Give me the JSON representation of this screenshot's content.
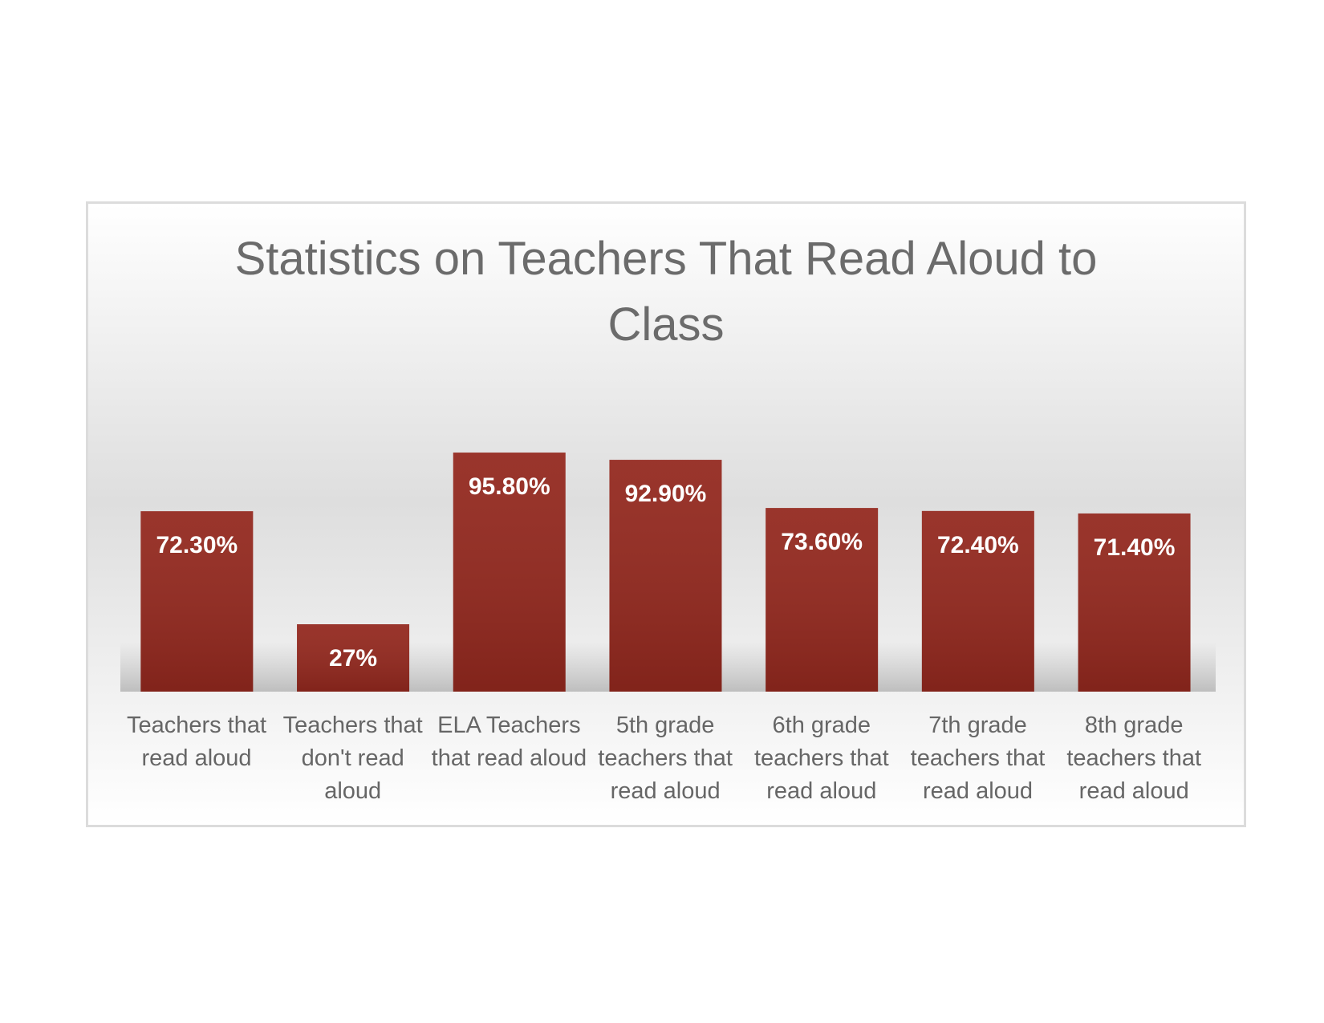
{
  "chart_data": {
    "type": "bar",
    "title": "Statistics on Teachers That Read Aloud to Class",
    "categories": [
      "Teachers that read aloud",
      "Teachers that don't read aloud",
      "ELA Teachers that read aloud",
      "5th grade teachers that read aloud",
      "6th grade teachers that read aloud",
      "7th grade teachers that read aloud",
      "8th grade teachers that read aloud"
    ],
    "values": [
      72.3,
      27,
      95.8,
      92.9,
      73.6,
      72.4,
      71.4
    ],
    "value_labels": [
      "72.30%",
      "27%",
      "95.80%",
      "92.90%",
      "73.60%",
      "72.40%",
      "71.40%"
    ],
    "color": "#93281e"
  }
}
